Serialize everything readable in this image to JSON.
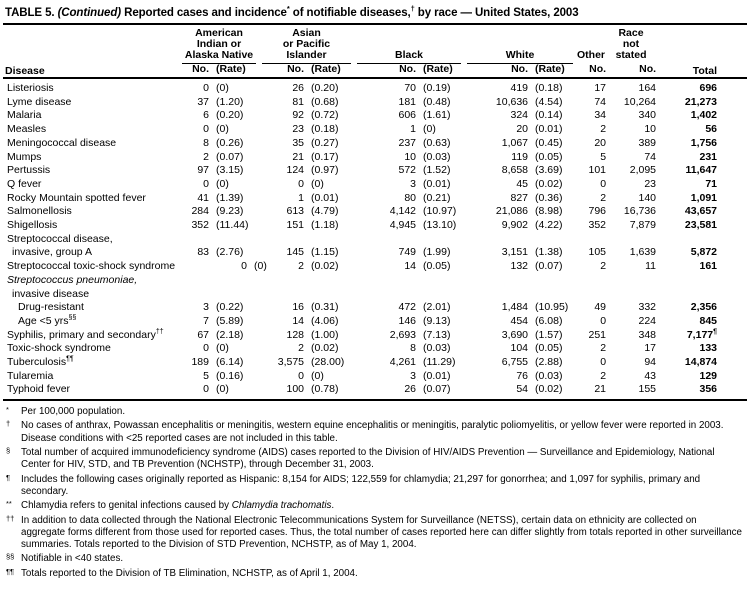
{
  "colors": {
    "text": "#000000",
    "background": "#ffffff",
    "rule": "#000000"
  },
  "title": {
    "part1": "TABLE 5.",
    "continued": "(Continued)",
    "part2": "Reported cases and incidence",
    "sup1": "*",
    "part3": " of notifiable diseases,",
    "sup2": "†",
    "part4": " by race — United States, 2003"
  },
  "header": {
    "disease": "Disease",
    "total": "Total",
    "groups": [
      {
        "lines": [
          "American",
          "Indian or",
          "Alaska Native"
        ],
        "cols": [
          "No.",
          "(Rate)"
        ],
        "rule": true
      },
      {
        "lines": [
          "Asian",
          "or Pacific",
          "Islander"
        ],
        "cols": [
          "No.",
          "(Rate)"
        ],
        "rule": true
      },
      {
        "lines": [
          "Black"
        ],
        "cols": [
          "No.",
          "(Rate)"
        ],
        "rule": true
      },
      {
        "lines": [
          "White"
        ],
        "cols": [
          "No.",
          "(Rate)"
        ],
        "rule": true
      },
      {
        "lines": [
          "Other"
        ],
        "cols": [
          "No."
        ],
        "rule": false
      },
      {
        "lines": [
          "Race",
          "not",
          "stated"
        ],
        "cols": [
          "No."
        ],
        "rule": false
      }
    ]
  },
  "rows": [
    {
      "label": "Listeriosis",
      "indent": 0,
      "cells": [
        "0",
        "(0)",
        "26",
        "(0.20)",
        "70",
        "(0.19)",
        "419",
        "(0.18)",
        "17",
        "164",
        "696"
      ]
    },
    {
      "label": "Lyme disease",
      "indent": 0,
      "cells": [
        "37",
        "(1.20)",
        "81",
        "(0.68)",
        "181",
        "(0.48)",
        "10,636",
        "(4.54)",
        "74",
        "10,264",
        "21,273"
      ]
    },
    {
      "label": "Malaria",
      "indent": 0,
      "cells": [
        "6",
        "(0.20)",
        "92",
        "(0.72)",
        "606",
        "(1.61)",
        "324",
        "(0.14)",
        "34",
        "340",
        "1,402"
      ]
    },
    {
      "label": "Measles",
      "indent": 0,
      "cells": [
        "0",
        "(0)",
        "23",
        "(0.18)",
        "1",
        "(0)",
        "20",
        "(0.01)",
        "2",
        "10",
        "56"
      ]
    },
    {
      "label": "Meningococcal disease",
      "indent": 0,
      "cells": [
        "8",
        "(0.26)",
        "35",
        "(0.27)",
        "237",
        "(0.63)",
        "1,067",
        "(0.45)",
        "20",
        "389",
        "1,756"
      ]
    },
    {
      "label": "Mumps",
      "indent": 0,
      "cells": [
        "2",
        "(0.07)",
        "21",
        "(0.17)",
        "10",
        "(0.03)",
        "119",
        "(0.05)",
        "5",
        "74",
        "231"
      ]
    },
    {
      "label": "Pertussis",
      "indent": 0,
      "cells": [
        "97",
        "(3.15)",
        "124",
        "(0.97)",
        "572",
        "(1.52)",
        "8,658",
        "(3.69)",
        "101",
        "2,095",
        "11,647"
      ]
    },
    {
      "label": "Q fever",
      "indent": 0,
      "cells": [
        "0",
        "(0)",
        "0",
        "(0)",
        "3",
        "(0.01)",
        "45",
        "(0.02)",
        "0",
        "23",
        "71"
      ]
    },
    {
      "label": "Rocky Mountain spotted fever",
      "indent": 0,
      "cells": [
        "41",
        "(1.39)",
        "1",
        "(0.01)",
        "80",
        "(0.21)",
        "827",
        "(0.36)",
        "2",
        "140",
        "1,091"
      ]
    },
    {
      "label": "Salmonellosis",
      "indent": 0,
      "cells": [
        "284",
        "(9.23)",
        "613",
        "(4.79)",
        "4,142",
        "(10.97)",
        "21,086",
        "(8.98)",
        "796",
        "16,736",
        "43,657"
      ]
    },
    {
      "label": "Shigellosis",
      "indent": 0,
      "cells": [
        "352",
        "(11.44)",
        "151",
        "(1.18)",
        "4,945",
        "(13.10)",
        "9,902",
        "(4.22)",
        "352",
        "7,879",
        "23,581"
      ]
    },
    {
      "label": "Streptococcal disease,",
      "indent": 0,
      "cells": null
    },
    {
      "label": "invasive, group A",
      "indent": 1,
      "cells": [
        "83",
        "(2.76)",
        "145",
        "(1.15)",
        "749",
        "(1.99)",
        "3,151",
        "(1.38)",
        "105",
        "1,639",
        "5,872"
      ]
    },
    {
      "label": "Streptococcal toxic-shock syndrome",
      "indent": 0,
      "shift": true,
      "cells": [
        "0",
        "(0)",
        "2",
        "(0.02)",
        "14",
        "(0.05)",
        "132",
        "(0.07)",
        "2",
        "11",
        "161"
      ]
    },
    {
      "label": "Streptococcus pneumoniae,",
      "indent": 0,
      "italic": true,
      "cells": null
    },
    {
      "label": "invasive disease",
      "indent": 1,
      "cells": null
    },
    {
      "label": "Drug-resistant",
      "indent": 2,
      "cells": [
        "3",
        "(0.22)",
        "16",
        "(0.31)",
        "472",
        "(2.01)",
        "1,484",
        "(10.95)",
        "49",
        "332",
        "2,356"
      ]
    },
    {
      "label": "Age <5 yrs",
      "sup": "§§",
      "indent": 2,
      "cells": [
        "7",
        "(5.89)",
        "14",
        "(4.06)",
        "146",
        "(9.13)",
        "454",
        "(6.08)",
        "0",
        "224",
        "845"
      ]
    },
    {
      "label": "Syphilis, primary and secondary",
      "sup": "††",
      "indent": 0,
      "total_sup": "¶",
      "cells": [
        "67",
        "(2.18)",
        "128",
        "(1.00)",
        "2,693",
        "(7.13)",
        "3,690",
        "(1.57)",
        "251",
        "348",
        "7,177"
      ]
    },
    {
      "label": "Toxic-shock syndrome",
      "indent": 0,
      "cells": [
        "0",
        "(0)",
        "2",
        "(0.02)",
        "8",
        "(0.03)",
        "104",
        "(0.05)",
        "2",
        "17",
        "133"
      ]
    },
    {
      "label": "Tuberculosis",
      "sup": "¶¶",
      "indent": 0,
      "cells": [
        "189",
        "(6.14)",
        "3,575",
        "(28.00)",
        "4,261",
        "(11.29)",
        "6,755",
        "(2.88)",
        "0",
        "94",
        "14,874"
      ]
    },
    {
      "label": "Tularemia",
      "indent": 0,
      "cells": [
        "5",
        "(0.16)",
        "0",
        "(0)",
        "3",
        "(0.01)",
        "76",
        "(0.03)",
        "2",
        "43",
        "129"
      ]
    },
    {
      "label": "Typhoid fever",
      "indent": 0,
      "cells": [
        "0",
        "(0)",
        "100",
        "(0.78)",
        "26",
        "(0.07)",
        "54",
        "(0.02)",
        "21",
        "155",
        "356"
      ]
    }
  ],
  "column_keys": [
    "aian-no",
    "aian-rate",
    "api-no",
    "api-rate",
    "black-no",
    "black-rate",
    "white-no",
    "white-rate",
    "other-no",
    "race-not-stated-no",
    "total"
  ],
  "footnotes": [
    {
      "marker": "*",
      "pre": "Per 100,000 population."
    },
    {
      "marker": "†",
      "pre": "No cases of anthrax, Powassan encephalitis or meningitis, western equine encephalitis or meningitis, paralytic poliomyelitis, or yellow fever were reported in 2003. Disease conditions with <25 reported cases are not included in this table."
    },
    {
      "marker": "§",
      "pre": "Total number of acquired immunodeficiency syndrome (AIDS) cases reported to the Division of HIV/AIDS Prevention — Surveillance and Epidemiology, National Center for HIV, STD, and TB Prevention (NCHSTP), through December 31, 2003."
    },
    {
      "marker": "¶",
      "pre": "Includes the following cases originally reported as Hispanic: 8,154 for AIDS; 122,559 for chlamydia; 21,297 for gonorrhea; and 1,097 for syphilis, primary and secondary."
    },
    {
      "marker": "**",
      "pre": "Chlamydia refers to genital infections caused by ",
      "italic": "Chlamydia trachomatis",
      "post": "."
    },
    {
      "marker": "††",
      "pre": "In addition to data collected through the National Electronic Telecommunications System for Surveillance (NETSS), certain data on ethnicity are collected on aggregate forms different from those used for reported cases. Thus, the total number of cases reported here can differ slightly from totals reported in other surveillance summaries. Totals reported to the Division of STD Prevention, NCHSTP, as of May 1, 2004."
    },
    {
      "marker": "§§",
      "pre": "Notifiable in <40 states."
    },
    {
      "marker": "¶¶",
      "pre": "Totals reported to the Division of TB Elimination, NCHSTP, as of April 1, 2004."
    }
  ]
}
